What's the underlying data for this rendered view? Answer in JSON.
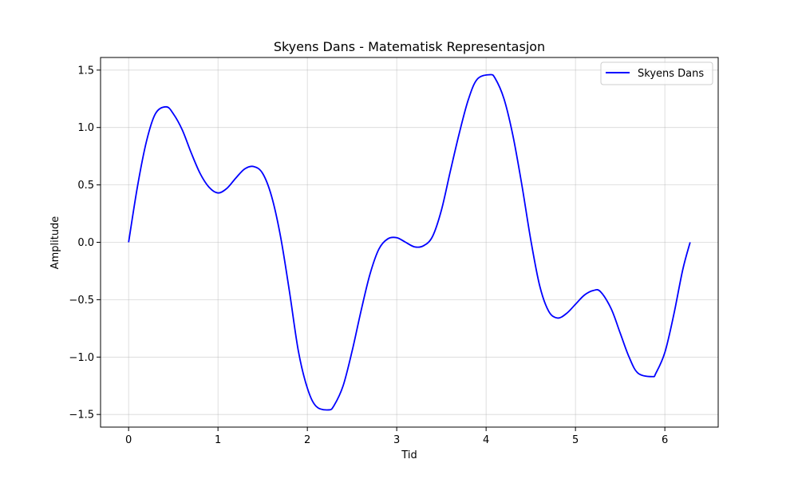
{
  "chart_data": {
    "type": "line",
    "title": "Skyens Dans - Matematisk Representasjon",
    "xlabel": "Tid",
    "ylabel": "Amplitude",
    "xlim": [
      -0.314,
      6.597
    ],
    "ylim": [
      -1.61,
      1.61
    ],
    "xticks": [
      0,
      1,
      2,
      3,
      4,
      5,
      6
    ],
    "yticks": [
      -1.5,
      -1.0,
      -0.5,
      0.0,
      0.5,
      1.0,
      1.5
    ],
    "xtick_labels": [
      "0",
      "1",
      "2",
      "3",
      "4",
      "5",
      "6"
    ],
    "ytick_labels": [
      "−1.5",
      "−1.0",
      "−0.5",
      "0.0",
      "0.5",
      "1.0",
      "1.5"
    ],
    "grid": true,
    "legend_position": "top-right",
    "series": [
      {
        "name": "Skyens Dans",
        "color": "#0000ff",
        "x": [
          0,
          0.1,
          0.2,
          0.3,
          0.42,
          0.5,
          0.6,
          0.7,
          0.8,
          0.9,
          1.0,
          1.1,
          1.2,
          1.3,
          1.4,
          1.5,
          1.6,
          1.7,
          1.8,
          1.9,
          2.0,
          2.1,
          2.24,
          2.3,
          2.4,
          2.5,
          2.6,
          2.7,
          2.8,
          2.9,
          3.0,
          3.1,
          3.2,
          3.3,
          3.4,
          3.5,
          3.6,
          3.7,
          3.8,
          3.9,
          4.04,
          4.1,
          4.2,
          4.3,
          4.4,
          4.5,
          4.6,
          4.7,
          4.8,
          4.9,
          5.0,
          5.1,
          5.2,
          5.28,
          5.4,
          5.5,
          5.6,
          5.7,
          5.86,
          5.9,
          6.0,
          6.1,
          6.2,
          6.283
        ],
        "y": [
          0.0,
          0.49,
          0.88,
          1.12,
          1.18,
          1.12,
          0.98,
          0.78,
          0.6,
          0.48,
          0.43,
          0.47,
          0.56,
          0.64,
          0.66,
          0.6,
          0.4,
          0.05,
          -0.43,
          -0.95,
          -1.27,
          -1.43,
          -1.46,
          -1.42,
          -1.25,
          -0.95,
          -0.6,
          -0.28,
          -0.06,
          0.03,
          0.04,
          0.0,
          -0.04,
          -0.03,
          0.05,
          0.28,
          0.62,
          0.95,
          1.24,
          1.42,
          1.46,
          1.43,
          1.25,
          0.93,
          0.5,
          0.02,
          -0.38,
          -0.6,
          -0.66,
          -0.62,
          -0.54,
          -0.46,
          -0.42,
          -0.43,
          -0.58,
          -0.79,
          -1.0,
          -1.14,
          -1.17,
          -1.14,
          -0.96,
          -0.63,
          -0.24,
          0.0
        ]
      }
    ]
  }
}
